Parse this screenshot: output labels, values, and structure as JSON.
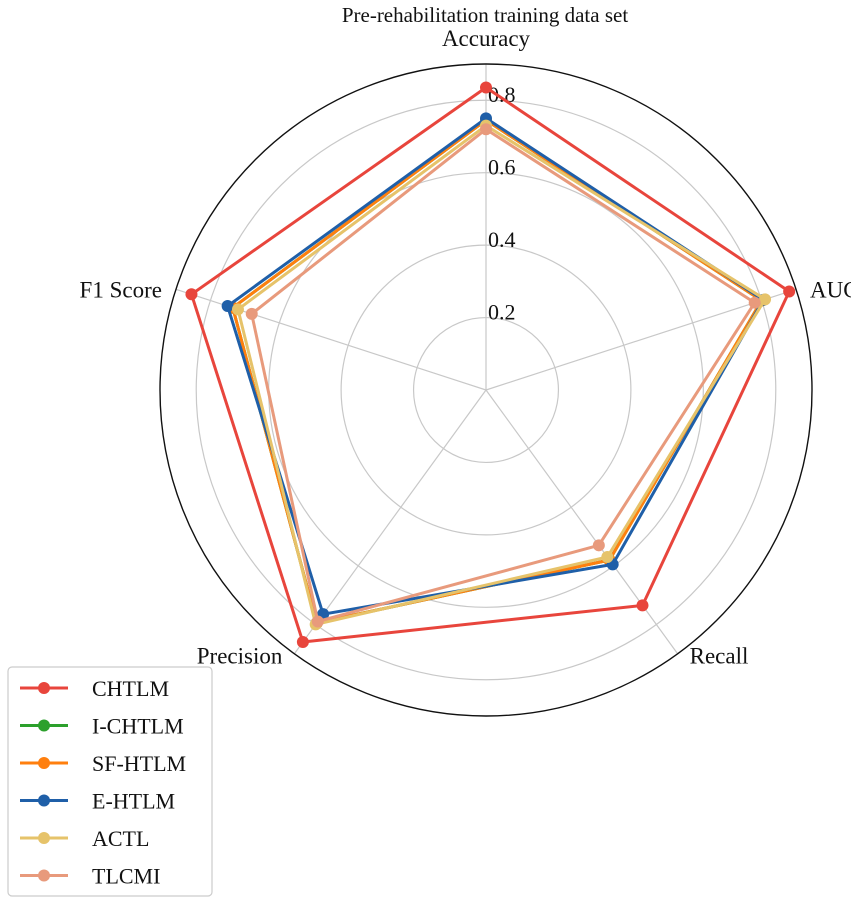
{
  "chart_data": {
    "type": "radar",
    "title": "Pre-rehabilitation training data set",
    "axes": [
      "Accuracy",
      "AUC",
      "Recall",
      "Precision",
      "F1 Score"
    ],
    "rlim": [
      0,
      0.9
    ],
    "rticks": [
      0.2,
      0.4,
      0.6,
      0.8
    ],
    "rtick_labels": [
      "0.2",
      "0.4",
      "0.6",
      "0.8"
    ],
    "grid": true,
    "legend_position": "bottom-left",
    "series": [
      {
        "name": "CHTLM",
        "color": "#e8453c",
        "values": [
          0.835,
          0.88,
          0.735,
          0.86,
          0.855
        ]
      },
      {
        "name": "I-CHTLM",
        "color": "#2ca02c",
        "values": [
          0.745,
          0.8,
          0.58,
          0.795,
          0.735
        ]
      },
      {
        "name": "SF-HTLM",
        "color": "#ff7f0e",
        "values": [
          0.745,
          0.8,
          0.58,
          0.795,
          0.735
        ]
      },
      {
        "name": "E-HTLM",
        "color": "#1f5fa8",
        "values": [
          0.75,
          0.805,
          0.595,
          0.765,
          0.75
        ]
      },
      {
        "name": "ACTL",
        "color": "#e6c36a",
        "values": [
          0.73,
          0.81,
          0.57,
          0.8,
          0.72
        ]
      },
      {
        "name": "TLCMI",
        "color": "#e89a7c",
        "values": [
          0.72,
          0.78,
          0.53,
          0.79,
          0.68
        ]
      }
    ]
  }
}
